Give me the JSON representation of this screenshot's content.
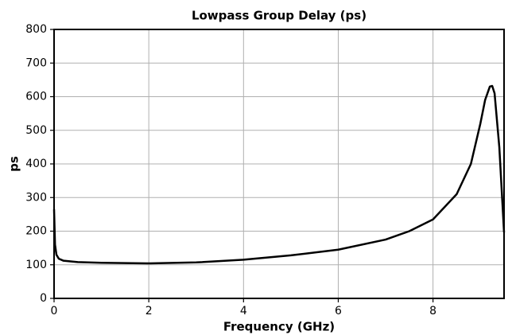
{
  "chart_data": {
    "type": "line",
    "title": "Lowpass Group Delay (ps)",
    "x_label": "Frequency (GHz)",
    "y_label": "ps",
    "x": [
      0,
      0.02,
      0.05,
      0.1,
      0.2,
      0.5,
      1,
      2,
      3,
      4,
      5,
      6,
      7,
      7.5,
      8,
      8.5,
      8.8,
      9.0,
      9.1,
      9.2,
      9.25,
      9.3,
      9.4,
      9.5
    ],
    "series": [
      {
        "name": "Group Delay",
        "color": "#000000",
        "values": [
          265,
          160,
          130,
          118,
          112,
          108,
          106,
          104,
          107,
          115,
          128,
          145,
          175,
          200,
          235,
          310,
          400,
          520,
          590,
          630,
          632,
          610,
          450,
          196
        ]
      }
    ],
    "xlim": [
      0,
      9.5
    ],
    "xticks": [
      0,
      2,
      4,
      6,
      8
    ],
    "ylim": [
      0,
      800
    ],
    "yticks": [
      0,
      100,
      200,
      300,
      400,
      500,
      600,
      700,
      800
    ],
    "grid": true
  }
}
